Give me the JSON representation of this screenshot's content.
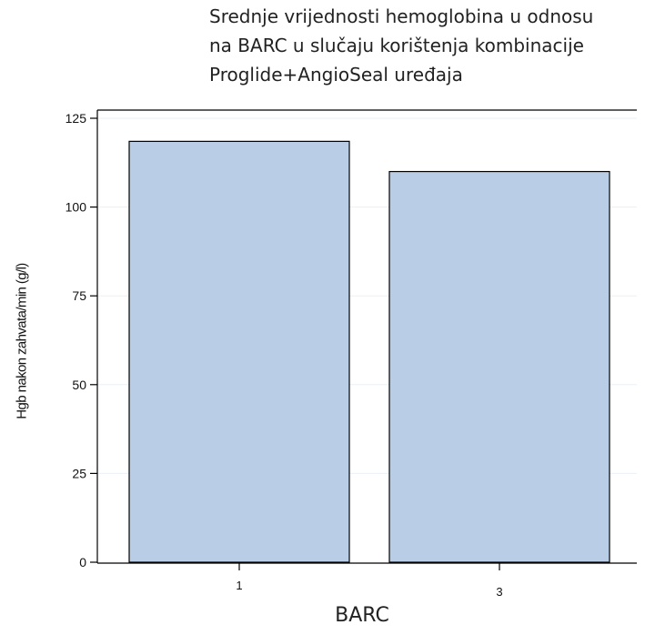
{
  "chart_data": {
    "type": "bar",
    "title_lines": [
      "Srednje vrijednosti hemoglobina u odnosu",
      "na BARC u slučaju korištenja kombinacije",
      "Proglide+AngioSeal uređaja"
    ],
    "categories": [
      "1",
      "3"
    ],
    "values": [
      118.5,
      110
    ],
    "xlabel": "BARC",
    "ylabel": "Hgb nakon zahvata/min (g/l)",
    "ylim": [
      0,
      125
    ],
    "yticks": [
      0,
      25,
      50,
      75,
      100,
      125
    ],
    "grid": true,
    "bar_color": "#b9cee6",
    "bar_edge_color": "#000000",
    "grid_color": "#eaf0f6"
  }
}
